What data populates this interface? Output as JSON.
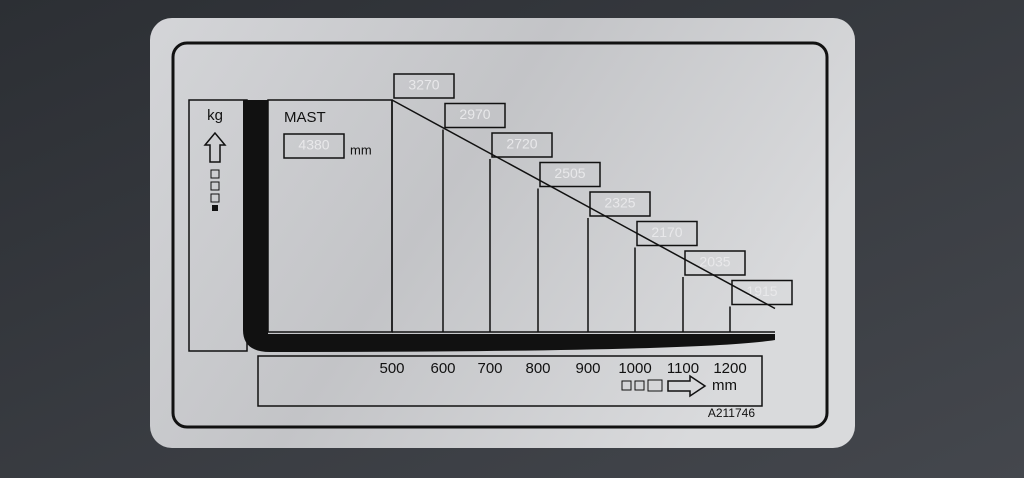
{
  "plate": {
    "weight_unit": "kg",
    "mast_label": "MAST",
    "mast_height": "4380",
    "mast_unit": "mm",
    "load_centers": [
      "500",
      "600",
      "700",
      "800",
      "900",
      "1000",
      "1100",
      "1200"
    ],
    "capacities": [
      "3270",
      "2970",
      "2720",
      "2505",
      "2325",
      "2170",
      "2035",
      "1915"
    ],
    "distance_unit": "mm",
    "part_number": "A211746"
  }
}
